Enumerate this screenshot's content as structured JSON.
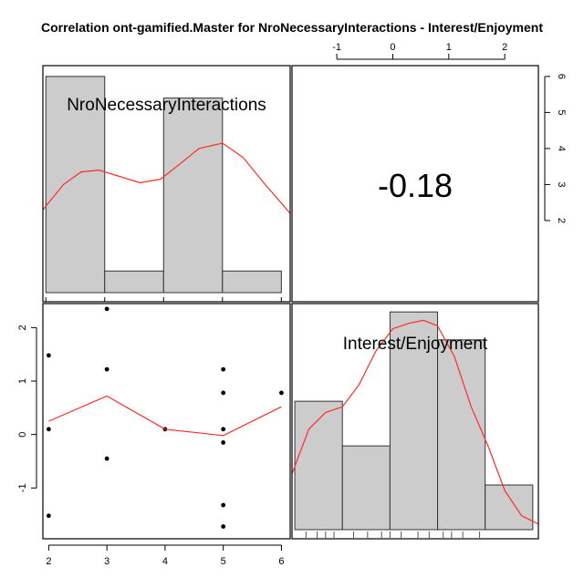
{
  "title": "Correlation ont-gamified.Master for NroNecessaryInteractions - Interest/Enjoyment",
  "colors": {
    "bar_fill": "#cccccc",
    "bar_stroke": "#333333",
    "curve": "#ff2a2a",
    "point": "#000000",
    "frame": "#000000"
  },
  "chart_data": [
    {
      "type": "bar",
      "panel": "top-left",
      "label": "NroNecessaryInteractions",
      "bins": [
        [
          2,
          3
        ],
        [
          3,
          4
        ],
        [
          4,
          5
        ],
        [
          5,
          6
        ]
      ],
      "values": [
        6,
        0.6,
        5.4,
        0.6
      ],
      "xlim": [
        1.95,
        6.15
      ],
      "ylim": [
        0,
        6.3
      ],
      "density_curve": {
        "x": [
          1.95,
          2.3,
          2.6,
          2.9,
          3.2,
          3.6,
          3.95,
          4.3,
          4.6,
          5.0,
          5.35,
          5.7,
          6.15
        ],
        "y": [
          2.3,
          3.0,
          3.35,
          3.4,
          3.25,
          3.05,
          3.15,
          3.6,
          4.0,
          4.15,
          3.75,
          3.05,
          2.2
        ]
      }
    },
    {
      "type": "table",
      "panel": "top-right",
      "correlation": "-0.18",
      "x_ticks": [
        "-1",
        "0",
        "1",
        "2"
      ],
      "y_ticks": [
        "2",
        "3",
        "4",
        "5",
        "6"
      ]
    },
    {
      "type": "scatter",
      "panel": "bottom-left",
      "x": [
        2,
        2,
        2,
        3,
        3,
        3,
        4,
        5,
        5,
        5,
        5,
        5,
        5,
        6
      ],
      "y": [
        1.48,
        0.1,
        -1.52,
        2.35,
        1.22,
        -0.45,
        0.1,
        1.22,
        0.78,
        0.1,
        -0.15,
        -1.32,
        -1.72,
        0.78
      ],
      "xlim": [
        1.9,
        6.15
      ],
      "ylim": [
        -1.95,
        2.45
      ],
      "x_ticks": [
        "2",
        "3",
        "4",
        "5",
        "6"
      ],
      "y_ticks": [
        "2",
        "1",
        "0",
        "-1"
      ],
      "smooth_line": {
        "x": [
          2,
          3,
          4,
          5,
          6
        ],
        "y": [
          0.25,
          0.72,
          0.1,
          -0.02,
          0.52
        ]
      }
    },
    {
      "type": "bar",
      "panel": "bottom-right",
      "label": "Interest/Enjoyment",
      "bins": [
        [
          -1.75,
          -0.9
        ],
        [
          -0.9,
          -0.05
        ],
        [
          -0.05,
          0.8
        ],
        [
          0.8,
          1.65
        ],
        [
          1.65,
          2.5
        ]
      ],
      "values": [
        2.3,
        1.5,
        3.9,
        3.4,
        0.8
      ],
      "xlim": [
        -1.8,
        2.6
      ],
      "ylim": [
        0,
        4.05
      ],
      "density_curve": {
        "x": [
          -1.8,
          -1.5,
          -1.2,
          -0.9,
          -0.6,
          -0.3,
          0.0,
          0.3,
          0.55,
          0.8,
          1.1,
          1.4,
          1.7,
          2.0,
          2.3,
          2.6
        ],
        "y": [
          1.0,
          1.8,
          2.1,
          2.2,
          2.6,
          3.2,
          3.6,
          3.7,
          3.75,
          3.65,
          3.1,
          2.2,
          1.5,
          0.7,
          0.25,
          0.1
        ]
      },
      "rug": [
        -1.55,
        -1.35,
        -1.2,
        -1.05,
        -0.7,
        -0.45,
        -0.2,
        -0.05,
        0.15,
        0.45,
        0.65,
        0.9,
        1.05,
        1.25,
        1.55
      ]
    }
  ]
}
